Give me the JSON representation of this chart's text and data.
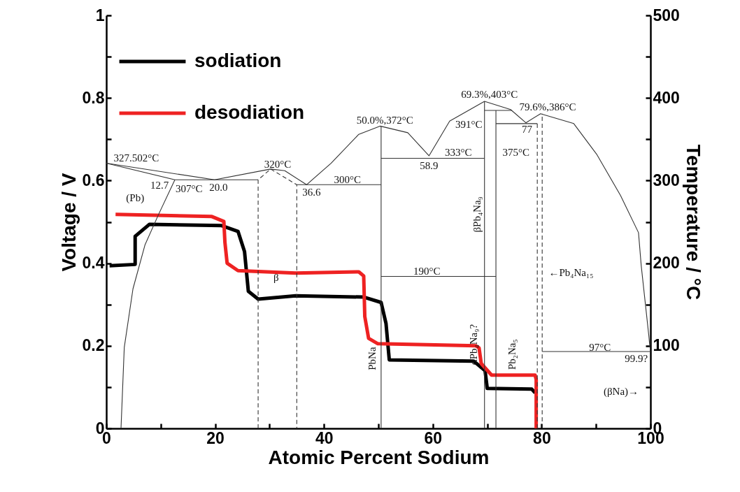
{
  "chart_data": {
    "type": "line",
    "xlabel": "Atomic Percent Sodium",
    "ylabel": "Voltage / V",
    "y2label": "Temperature / °C",
    "xlim": [
      0,
      100
    ],
    "xticks": [
      0,
      {
        "value": 10,
        "label": null
      },
      20,
      {
        "value": 30,
        "label": null
      },
      40,
      {
        "value": 50,
        "label": null
      },
      60,
      {
        "value": 70,
        "label": null
      },
      80,
      {
        "value": 90,
        "label": null
      },
      100
    ],
    "ylim": [
      0,
      1
    ],
    "yticks": [
      0,
      {
        "value": 0.1,
        "label": null
      },
      0.2,
      {
        "value": 0.3,
        "label": null
      },
      0.4,
      {
        "value": 0.5,
        "label": null
      },
      0.6,
      {
        "value": 0.7,
        "label": null
      },
      0.8,
      {
        "value": 0.9,
        "label": null
      },
      1
    ],
    "y2lim": [
      0,
      500
    ],
    "y2ticks": [
      0,
      {
        "value": 50,
        "label": null
      },
      100,
      {
        "value": 150,
        "label": null
      },
      200,
      {
        "value": 250,
        "label": null
      },
      300,
      {
        "value": 350,
        "label": null
      },
      400,
      {
        "value": 450,
        "label": null
      },
      500
    ],
    "legend": "top left",
    "marker": "none",
    "line_style": "solid",
    "series": [
      {
        "name": "sodiation",
        "color": "#000000",
        "x": [
          0.6,
          5.3,
          5.3,
          7.9,
          21.2,
          24.2,
          25.4,
          26.1,
          27.9,
          34.8,
          47.3,
          50.5,
          51.4,
          52.0,
          67.5,
          69.6,
          70.0,
          78.2,
          78.8
        ],
        "values": [
          0.394,
          0.397,
          0.465,
          0.494,
          0.491,
          0.477,
          0.428,
          0.332,
          0.313,
          0.321,
          0.318,
          0.305,
          0.254,
          0.166,
          0.163,
          0.14,
          0.097,
          0.095,
          0.086
        ]
      },
      {
        "name": "desodiation",
        "color": "#ee2222",
        "x": [
          1.7,
          19.4,
          21.6,
          21.8,
          22.2,
          24.2,
          34.8,
          46.4,
          47.3,
          47.5,
          48.2,
          49.9,
          67.9,
          68.5,
          68.9,
          70.8,
          78.8,
          79.0,
          79.0
        ],
        "values": [
          0.518,
          0.513,
          0.501,
          0.45,
          0.4,
          0.382,
          0.376,
          0.379,
          0.369,
          0.271,
          0.218,
          0.205,
          0.2,
          0.195,
          0.157,
          0.129,
          0.129,
          0.118,
          0
        ]
      },
      {
        "axis": "y2",
        "color": "#333333",
        "x": [
          0,
          19.9,
          30.2,
          32.8,
          36.8,
          41.3,
          46.4,
          50.3,
          55.4,
          59.3,
          63.1,
          69.5,
          74.3,
          77.1,
          79.8,
          85.9,
          90.1,
          94.5,
          97.8,
          98.3,
          99.7,
          99.9
        ],
        "values": [
          321,
          301,
          314,
          312,
          295,
          321,
          356,
          366,
          358,
          330,
          372,
          396,
          386,
          370,
          381,
          369,
          332,
          282,
          237,
          197,
          112,
          98
        ]
      },
      {
        "axis": "y2",
        "color": "#333333",
        "x": [
          0,
          12.6,
          27.9
        ],
        "values": [
          321,
          301,
          301
        ]
      },
      {
        "axis": "y2",
        "color": "#333333",
        "x": [
          12.6,
          9.6,
          7.1,
          4.9,
          3.3,
          2.7
        ],
        "values": [
          301,
          259,
          222,
          169,
          98,
          0
        ]
      },
      {
        "axis": "y2",
        "color": "#333333",
        "line_style": "dashed",
        "x": [
          27.9,
          27.9,
          30.2
        ],
        "values": [
          0,
          301,
          314
        ]
      },
      {
        "axis": "y2",
        "color": "#333333",
        "line_style": "dashed",
        "x": [
          30.2,
          35.0,
          35.0
        ],
        "values": [
          314,
          295,
          0
        ]
      },
      {
        "axis": "y2",
        "color": "#333333",
        "x": [
          35.0,
          50.5
        ],
        "values": [
          295,
          295
        ]
      },
      {
        "axis": "y2",
        "color": "#333333",
        "x": [
          50.5,
          50.5
        ],
        "values": [
          0,
          366
        ]
      },
      {
        "axis": "y2",
        "color": "#333333",
        "x": [
          50.5,
          69.5
        ],
        "values": [
          327,
          327
        ]
      },
      {
        "axis": "y2",
        "color": "#333333",
        "x": [
          69.5,
          69.5
        ],
        "values": [
          0,
          396
        ]
      },
      {
        "axis": "y2",
        "color": "#333333",
        "x": [
          71.6,
          71.6
        ],
        "values": [
          0,
          385
        ]
      },
      {
        "axis": "y2",
        "color": "#333333",
        "x": [
          69.5,
          74.5
        ],
        "values": [
          385,
          385
        ]
      },
      {
        "axis": "y2",
        "color": "#333333",
        "x": [
          71.6,
          79.2
        ],
        "values": [
          369,
          369
        ]
      },
      {
        "axis": "y2",
        "color": "#333333",
        "line_style": "dashed",
        "x": [
          79.2,
          79.2
        ],
        "values": [
          0,
          369
        ]
      },
      {
        "axis": "y2",
        "color": "#333333",
        "line_style": "dashed",
        "x": [
          80.1,
          80.1
        ],
        "values": [
          0,
          381
        ]
      },
      {
        "axis": "y2",
        "color": "#333333",
        "x": [
          50.5,
          71.6
        ],
        "values": [
          184,
          184
        ]
      },
      {
        "axis": "y2",
        "color": "#333333",
        "x": [
          80.1,
          99.9
        ],
        "values": [
          93,
          93
        ]
      }
    ],
    "annotations": [
      "327.502°C",
      "12.7",
      "307°C",
      "20.0",
      "(Pb)",
      "320°C",
      "36.6",
      "300°C",
      "β",
      "50.0%,372°C",
      "58.9",
      "333°C",
      "69.3%,403°C",
      "391°C",
      "79.6%,386°C",
      "77",
      "375°C",
      "190°C",
      "PbNa",
      "βPb₄Na₉",
      "αPb₄Na₉?",
      "Pb₂Na₅",
      "←Pb₄Na₁₅",
      "97°C",
      "99.9?",
      "(βNa)→"
    ]
  }
}
